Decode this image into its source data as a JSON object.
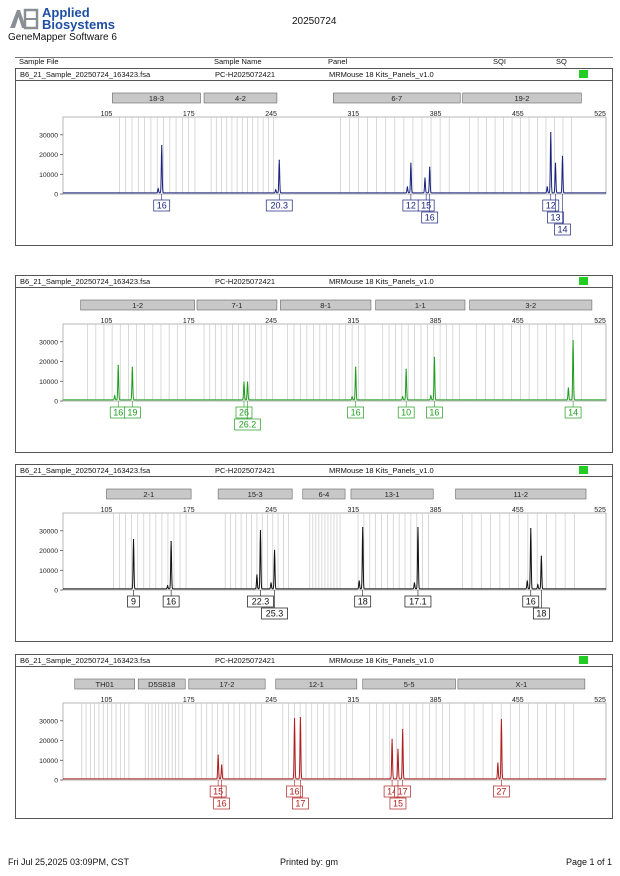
{
  "header": {
    "brand_line1": "Applied",
    "brand_line2": "Biosystems",
    "software": "GeneMapper Software 6",
    "date": "20250724",
    "columns": {
      "sample_file": "Sample File",
      "sample_name": "Sample Name",
      "panel": "Panel",
      "sqi": "SQI",
      "sq": "SQ"
    }
  },
  "footer": {
    "timestamp": "Fri Jul 25,2025 03:09PM, CST",
    "printed_by": "Printed by: gm",
    "page": "Page 1 of 1"
  },
  "colors": {
    "sq_ok": "#22cc22",
    "bin_fill": "#c8c8c8"
  },
  "panels": [
    {
      "sample_file": "B6_21_Sample_20250724_163423.fsa",
      "sample_name": "PC-H2025072421",
      "panel": "MRMouse 18 Kits_Panels_v1.0",
      "sq_status": "pass"
    },
    {
      "sample_file": "B6_21_Sample_20250724_163423.fsa",
      "sample_name": "PC-H2025072421",
      "panel": "MRMouse 18 Kits_Panels_v1.0",
      "sq_status": "pass"
    },
    {
      "sample_file": "B6_21_Sample_20250724_163423.fsa",
      "sample_name": "PC-H2025072421",
      "panel": "MRMouse 18 Kits_Panels_v1.0",
      "sq_status": "pass"
    },
    {
      "sample_file": "B6_21_Sample_20250724_163423.fsa",
      "sample_name": "PC-H2025072421",
      "panel": "MRMouse 18 Kits_Panels_v1.0",
      "sq_status": "pass"
    }
  ],
  "chart_data": [
    {
      "type": "line",
      "dye_color": "#1a237e",
      "xlim": [
        68,
        530
      ],
      "ylim": [
        0,
        37000
      ],
      "x_ticks": [
        105,
        175,
        245,
        315,
        385,
        455,
        525
      ],
      "y_ticks": [
        0,
        10000,
        20000,
        30000
      ],
      "markers": [
        {
          "name": "18-3",
          "range": [
            110,
            185
          ]
        },
        {
          "name": "4-2",
          "range": [
            188,
            250
          ]
        },
        {
          "name": "6-7",
          "range": [
            298,
            406
          ]
        },
        {
          "name": "19-2",
          "range": [
            408,
            509
          ]
        }
      ],
      "peaks": [
        {
          "x": 152,
          "y": 24000
        },
        {
          "x": 149,
          "y": 2000
        },
        {
          "x": 252,
          "y": 16500
        },
        {
          "x": 249,
          "y": 1500
        },
        {
          "x": 364,
          "y": 15000
        },
        {
          "x": 361,
          "y": 3000
        },
        {
          "x": 376,
          "y": 7500
        },
        {
          "x": 380,
          "y": 13000
        },
        {
          "x": 483,
          "y": 30500
        },
        {
          "x": 487,
          "y": 15000
        },
        {
          "x": 493,
          "y": 18500
        },
        {
          "x": 480,
          "y": 3000
        }
      ],
      "allele_labels": [
        {
          "text": "16",
          "x": 152,
          "row": 0
        },
        {
          "text": "20.3",
          "x": 252,
          "row": 0
        },
        {
          "text": "12",
          "x": 364,
          "row": 0
        },
        {
          "text": "15",
          "x": 377,
          "row": 0
        },
        {
          "text": "16",
          "x": 380,
          "row": 1
        },
        {
          "text": "12",
          "x": 483,
          "row": 0
        },
        {
          "text": "13",
          "x": 487,
          "row": 1
        },
        {
          "text": "14",
          "x": 493,
          "row": 2
        }
      ]
    },
    {
      "type": "line",
      "dye_color": "#1e9e1e",
      "xlim": [
        68,
        530
      ],
      "ylim": [
        0,
        37000
      ],
      "x_ticks": [
        105,
        175,
        245,
        315,
        385,
        455,
        525
      ],
      "y_ticks": [
        0,
        10000,
        20000,
        30000
      ],
      "markers": [
        {
          "name": "1-2",
          "range": [
            83,
            180
          ]
        },
        {
          "name": "7-1",
          "range": [
            182,
            250
          ]
        },
        {
          "name": "8-1",
          "range": [
            253,
            330
          ]
        },
        {
          "name": "1-1",
          "range": [
            334,
            410
          ]
        },
        {
          "name": "3-2",
          "range": [
            414,
            518
          ]
        }
      ],
      "peaks": [
        {
          "x": 115,
          "y": 17500
        },
        {
          "x": 112,
          "y": 2000
        },
        {
          "x": 127,
          "y": 16500
        },
        {
          "x": 222,
          "y": 9000
        },
        {
          "x": 225,
          "y": 9000
        },
        {
          "x": 317,
          "y": 16500
        },
        {
          "x": 314,
          "y": 1500
        },
        {
          "x": 360,
          "y": 15500
        },
        {
          "x": 357,
          "y": 1500
        },
        {
          "x": 384,
          "y": 21500
        },
        {
          "x": 381,
          "y": 2000
        },
        {
          "x": 502,
          "y": 30000
        },
        {
          "x": 498,
          "y": 6000
        }
      ],
      "allele_labels": [
        {
          "text": "16",
          "x": 115,
          "row": 0
        },
        {
          "text": "19",
          "x": 127,
          "row": 0
        },
        {
          "text": "26",
          "x": 222,
          "row": 0
        },
        {
          "text": "26.2",
          "x": 225,
          "row": 1
        },
        {
          "text": "16",
          "x": 317,
          "row": 0
        },
        {
          "text": "10",
          "x": 360,
          "row": 0
        },
        {
          "text": "16",
          "x": 384,
          "row": 0
        },
        {
          "text": "14",
          "x": 502,
          "row": 0
        }
      ]
    },
    {
      "type": "line",
      "dye_color": "#111111",
      "xlim": [
        68,
        530
      ],
      "ylim": [
        0,
        37000
      ],
      "x_ticks": [
        105,
        175,
        245,
        315,
        385,
        455,
        525
      ],
      "y_ticks": [
        0,
        10000,
        20000,
        30000
      ],
      "markers": [
        {
          "name": "2-1",
          "range": [
            105,
            177
          ]
        },
        {
          "name": "15-3",
          "range": [
            200,
            263
          ]
        },
        {
          "name": "6-4",
          "range": [
            272,
            308
          ]
        },
        {
          "name": "13-1",
          "range": [
            313,
            383
          ]
        },
        {
          "name": "11-2",
          "range": [
            402,
            513
          ]
        }
      ],
      "peaks": [
        {
          "x": 128,
          "y": 25000
        },
        {
          "x": 160,
          "y": 24000
        },
        {
          "x": 157,
          "y": 1500
        },
        {
          "x": 236,
          "y": 29500
        },
        {
          "x": 233,
          "y": 7000
        },
        {
          "x": 248,
          "y": 19500
        },
        {
          "x": 245,
          "y": 3000
        },
        {
          "x": 323,
          "y": 31000
        },
        {
          "x": 320,
          "y": 4000
        },
        {
          "x": 370,
          "y": 31000
        },
        {
          "x": 367,
          "y": 3000
        },
        {
          "x": 466,
          "y": 30500
        },
        {
          "x": 463,
          "y": 4000
        },
        {
          "x": 475,
          "y": 16500
        },
        {
          "x": 472,
          "y": 2000
        }
      ],
      "allele_labels": [
        {
          "text": "9",
          "x": 128,
          "row": 0
        },
        {
          "text": "16",
          "x": 160,
          "row": 0
        },
        {
          "text": "22.3",
          "x": 236,
          "row": 0
        },
        {
          "text": "25.3",
          "x": 248,
          "row": 1
        },
        {
          "text": "18",
          "x": 323,
          "row": 0
        },
        {
          "text": "17.1",
          "x": 370,
          "row": 0
        },
        {
          "text": "16",
          "x": 466,
          "row": 0
        },
        {
          "text": "18",
          "x": 475,
          "row": 1
        }
      ]
    },
    {
      "type": "line",
      "dye_color": "#b21d1d",
      "xlim": [
        68,
        530
      ],
      "ylim": [
        0,
        37000
      ],
      "x_ticks": [
        105,
        175,
        245,
        315,
        385,
        455,
        525
      ],
      "y_ticks": [
        0,
        10000,
        20000,
        30000
      ],
      "markers": [
        {
          "name": "TH01",
          "range": [
            78,
            129
          ]
        },
        {
          "name": "D5S818",
          "range": [
            132,
            172
          ]
        },
        {
          "name": "17-2",
          "range": [
            175,
            240
          ]
        },
        {
          "name": "12-1",
          "range": [
            249,
            318
          ]
        },
        {
          "name": "5-5",
          "range": [
            323,
            402
          ]
        },
        {
          "name": "X-1",
          "range": [
            404,
            512
          ]
        }
      ],
      "peaks": [
        {
          "x": 200,
          "y": 12000
        },
        {
          "x": 203,
          "y": 7000
        },
        {
          "x": 265,
          "y": 30500
        },
        {
          "x": 270,
          "y": 31000
        },
        {
          "x": 348,
          "y": 20000
        },
        {
          "x": 353,
          "y": 15000
        },
        {
          "x": 357,
          "y": 25000
        },
        {
          "x": 438,
          "y": 8000
        },
        {
          "x": 441,
          "y": 30000
        }
      ],
      "allele_labels": [
        {
          "text": "15",
          "x": 200,
          "row": 0
        },
        {
          "text": "16",
          "x": 203,
          "row": 1
        },
        {
          "text": "16",
          "x": 265,
          "row": 0
        },
        {
          "text": "17",
          "x": 270,
          "row": 1
        },
        {
          "text": "14",
          "x": 348,
          "row": 0
        },
        {
          "text": "17",
          "x": 357,
          "row": 0
        },
        {
          "text": "15",
          "x": 353,
          "row": 1
        },
        {
          "text": "27",
          "x": 441,
          "row": 0
        }
      ]
    }
  ]
}
